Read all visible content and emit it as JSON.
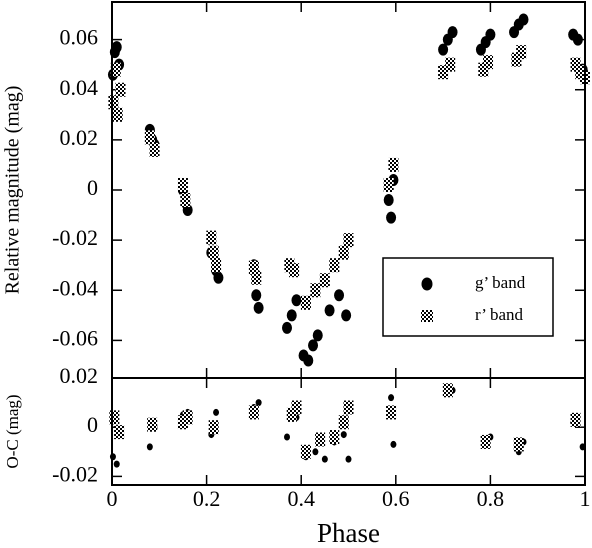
{
  "chart_data": [
    {
      "type": "scatter",
      "ylabel": "Relative magnitude (mag)",
      "ylim": [
        -0.075,
        0.075
      ],
      "yticks": [
        -0.06,
        -0.04,
        -0.02,
        0,
        0.02,
        0.04,
        0.06
      ],
      "legend": "lower right",
      "series": [
        {
          "name": "g’ band",
          "color": "#000000",
          "marker": "circle",
          "x": [
            0.002,
            0.006,
            0.01,
            0.015,
            0.08,
            0.085,
            0.09,
            0.15,
            0.155,
            0.16,
            0.21,
            0.22,
            0.225,
            0.3,
            0.305,
            0.31,
            0.37,
            0.38,
            0.39,
            0.405,
            0.415,
            0.425,
            0.435,
            0.46,
            0.48,
            0.495,
            0.585,
            0.59,
            0.595,
            0.7,
            0.71,
            0.72,
            0.78,
            0.79,
            0.8,
            0.85,
            0.86,
            0.87,
            0.975,
            0.985,
            0.995
          ],
          "values": [
            0.046,
            0.055,
            0.057,
            0.05,
            0.024,
            0.02,
            0.018,
            0,
            -0.005,
            -0.008,
            -0.025,
            -0.032,
            -0.035,
            -0.03,
            -0.042,
            -0.047,
            -0.055,
            -0.05,
            -0.044,
            -0.066,
            -0.068,
            -0.062,
            -0.058,
            -0.048,
            -0.042,
            -0.05,
            -0.004,
            -0.011,
            0.004,
            0.056,
            0.06,
            0.063,
            0.056,
            0.059,
            0.062,
            0.063,
            0.066,
            0.068,
            0.062,
            0.06,
            0.048
          ]
        },
        {
          "name": "r’ band",
          "color": "#000000",
          "marker": "checker",
          "x": [
            0.003,
            0.008,
            0.012,
            0.018,
            0.08,
            0.09,
            0.15,
            0.155,
            0.21,
            0.215,
            0.22,
            0.3,
            0.305,
            0.375,
            0.385,
            0.41,
            0.43,
            0.45,
            0.47,
            0.49,
            0.5,
            0.585,
            0.595,
            0.7,
            0.715,
            0.785,
            0.795,
            0.855,
            0.865,
            0.98,
            0.99,
            1.0
          ],
          "values": [
            0.035,
            0.048,
            0.03,
            0.04,
            0.021,
            0.016,
            0.002,
            -0.004,
            -0.019,
            -0.025,
            -0.03,
            -0.031,
            -0.035,
            -0.03,
            -0.032,
            -0.045,
            -0.04,
            -0.036,
            -0.03,
            -0.025,
            -0.02,
            0.002,
            0.01,
            0.047,
            0.05,
            0.048,
            0.051,
            0.052,
            0.055,
            0.05,
            0.047,
            0.045
          ]
        }
      ]
    },
    {
      "type": "scatter",
      "xlabel": "Phase",
      "ylabel": "O-C (mag)",
      "xlim": [
        0,
        1
      ],
      "xticks": [
        0,
        0.2,
        0.4,
        0.6,
        0.8,
        1
      ],
      "ylim": [
        -0.0235,
        0.02
      ],
      "yticks": [
        -0.02,
        0,
        0.02
      ],
      "series": [
        {
          "color": "#000000",
          "marker": "dot",
          "x": [
            0.002,
            0.01,
            0.08,
            0.09,
            0.15,
            0.16,
            0.21,
            0.22,
            0.3,
            0.31,
            0.37,
            0.39,
            0.41,
            0.43,
            0.45,
            0.47,
            0.49,
            0.5,
            0.59,
            0.595,
            0.71,
            0.72,
            0.79,
            0.8,
            0.86,
            0.87,
            0.975,
            0.995
          ],
          "values": [
            -0.012,
            -0.015,
            -0.008,
            0,
            0.005,
            0.006,
            -0.003,
            0.006,
            0.008,
            0.01,
            -0.004,
            0.004,
            -0.012,
            -0.01,
            -0.013,
            -0.006,
            -0.003,
            -0.013,
            0.012,
            -0.007,
            0.016,
            0.015,
            -0.007,
            -0.004,
            -0.01,
            -0.006,
            0.002,
            -0.008
          ]
        },
        {
          "color": "#000000",
          "marker": "checker",
          "x": [
            0.005,
            0.015,
            0.085,
            0.15,
            0.16,
            0.215,
            0.3,
            0.38,
            0.39,
            0.41,
            0.44,
            0.47,
            0.49,
            0.5,
            0.59,
            0.71,
            0.79,
            0.86,
            0.98
          ],
          "values": [
            0.004,
            -0.002,
            0.001,
            0.002,
            0.004,
            0,
            0.006,
            0.005,
            0.008,
            -0.01,
            -0.005,
            -0.004,
            0.002,
            0.008,
            0.006,
            0.015,
            -0.006,
            -0.007,
            0.003
          ]
        }
      ]
    }
  ]
}
